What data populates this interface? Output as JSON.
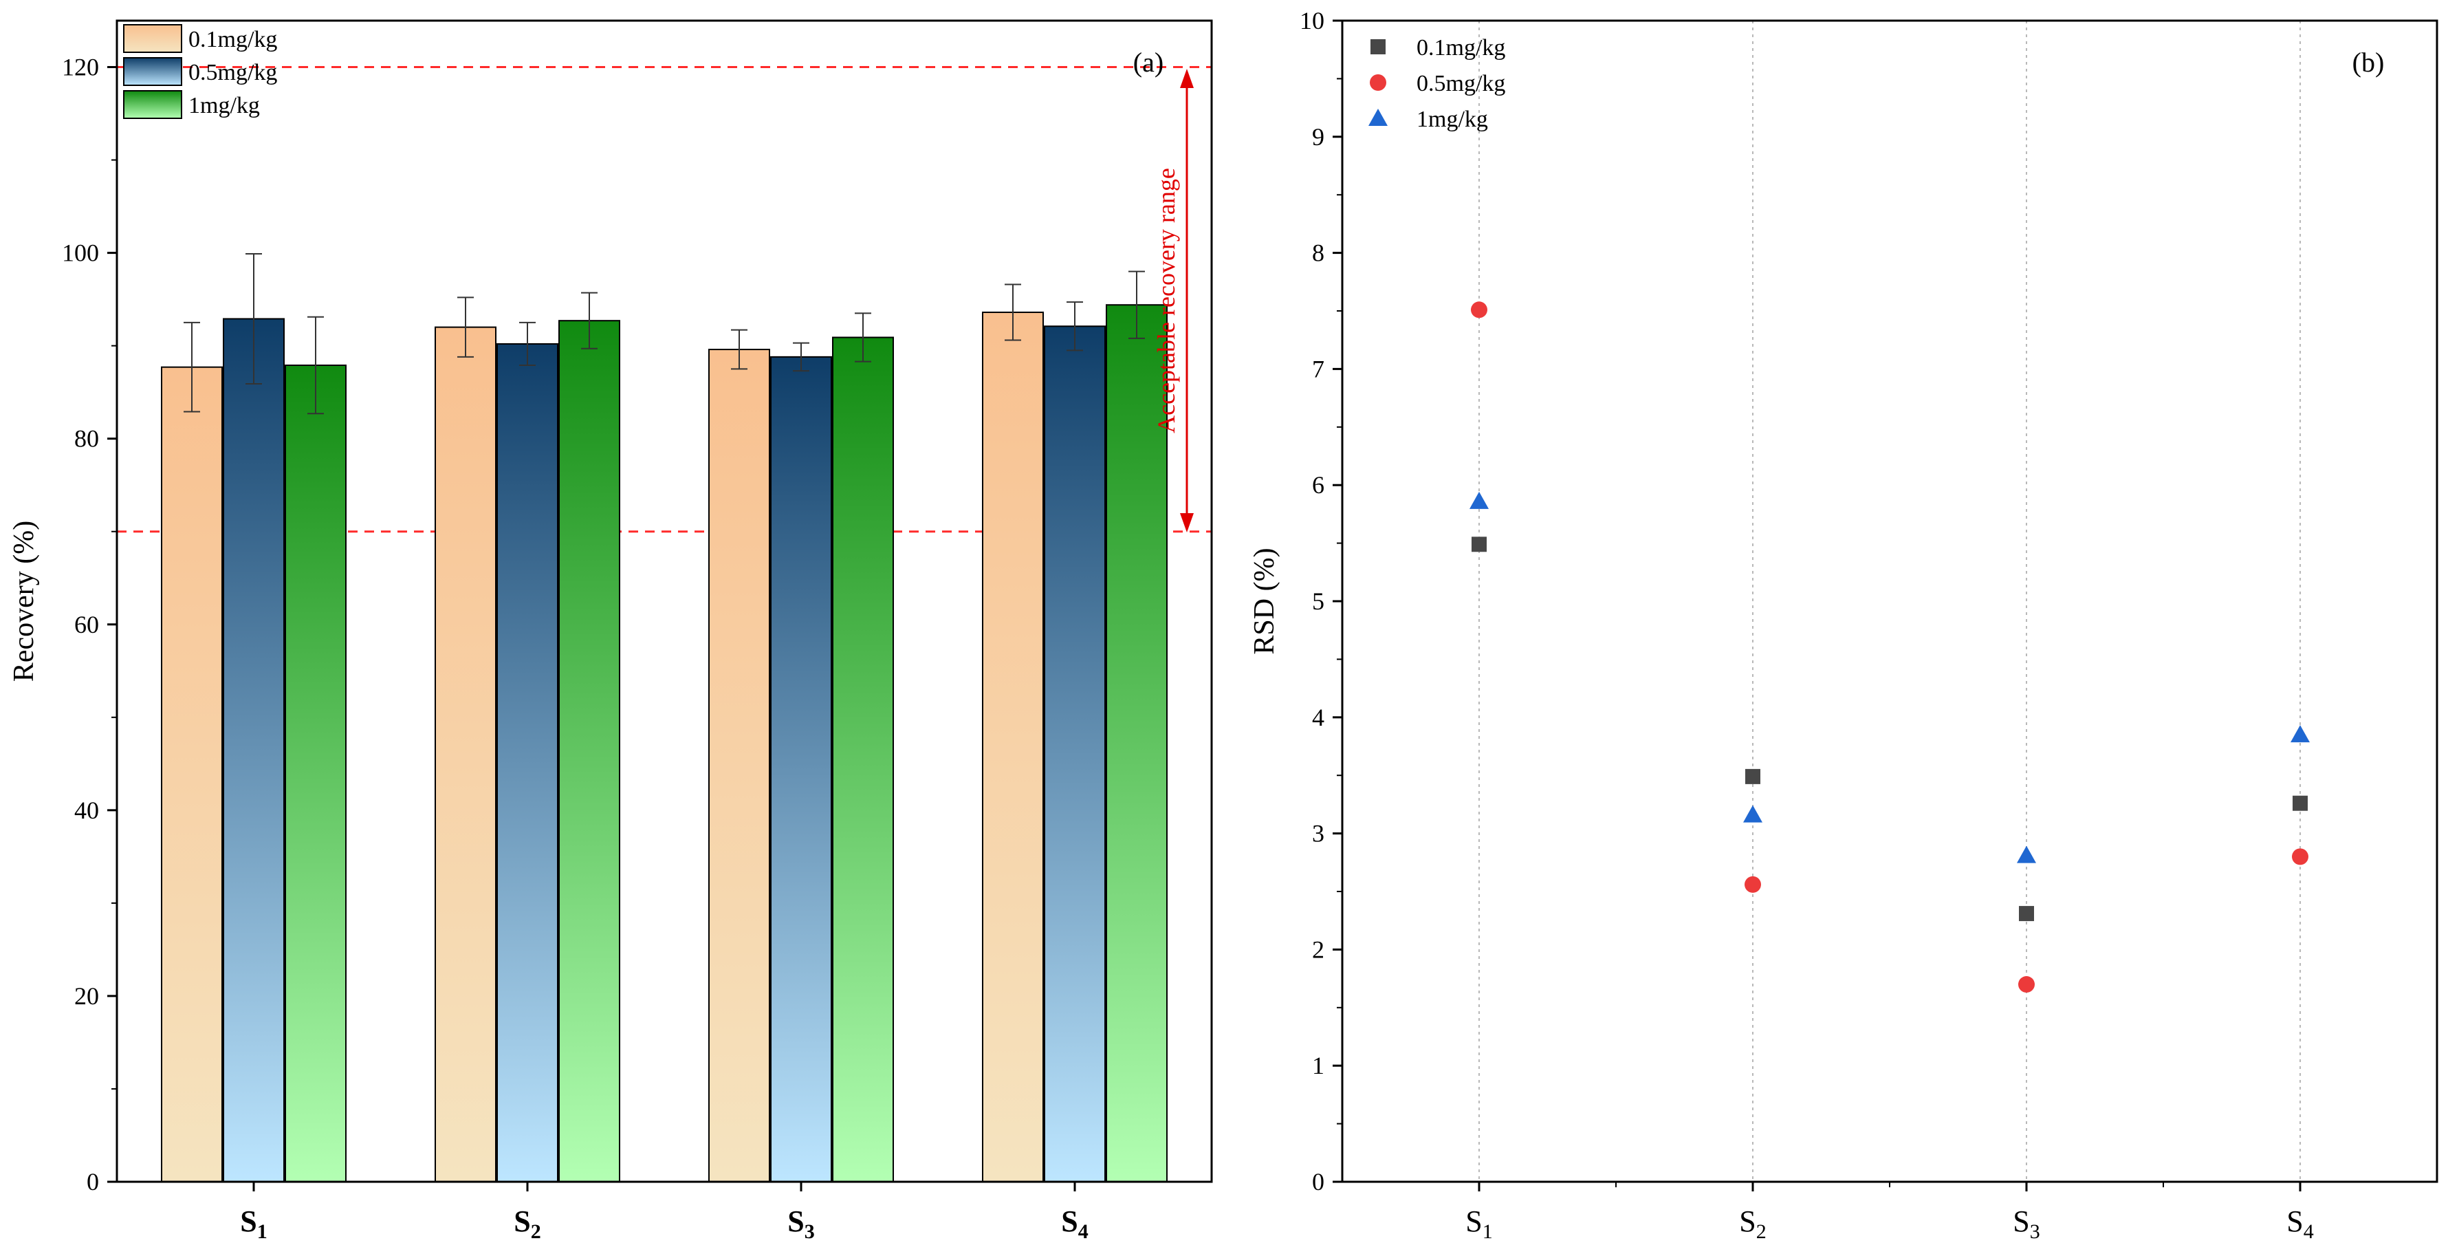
{
  "chart_data": [
    {
      "panel": "(a)",
      "type": "bar",
      "categories": [
        "S",
        "S",
        "S",
        "S"
      ],
      "category_subscripts": [
        "1",
        "2",
        "3",
        "4"
      ],
      "ylabel": "Recovery (%)",
      "ylim": [
        0,
        125
      ],
      "yticks": [
        0,
        20,
        40,
        60,
        80,
        100,
        120
      ],
      "legend_position": "top-left",
      "series": [
        {
          "name": "0.1mg/kg",
          "values": [
            87.7,
            92.0,
            89.6,
            93.6
          ],
          "errors": [
            4.8,
            3.2,
            2.1,
            3.0
          ],
          "color_top": "#f9c08f",
          "color_bottom": "#f5e4c0"
        },
        {
          "name": "0.5mg/kg",
          "values": [
            92.9,
            90.2,
            88.8,
            92.1
          ],
          "errors": [
            7.0,
            2.3,
            1.5,
            2.6
          ],
          "color_top": "#0e3d68",
          "color_bottom": "#bde6ff"
        },
        {
          "name": "1mg/kg",
          "values": [
            87.9,
            92.7,
            90.9,
            94.4
          ],
          "errors": [
            5.2,
            3.0,
            2.6,
            3.6
          ],
          "color_top": "#108a10",
          "color_bottom": "#b3ffb3"
        }
      ],
      "reference_lines": [
        120,
        70
      ],
      "annotation": "Acceptable recovery range"
    },
    {
      "panel": "(b)",
      "type": "scatter",
      "categories": [
        "S",
        "S",
        "S",
        "S"
      ],
      "category_subscripts": [
        "1",
        "2",
        "3",
        "4"
      ],
      "ylabel": "RSD (%)",
      "ylim": [
        0,
        10
      ],
      "yticks": [
        0,
        1,
        2,
        3,
        4,
        5,
        6,
        7,
        8,
        9,
        10
      ],
      "legend_position": "top-left",
      "vertical_grid": true,
      "series": [
        {
          "name": "0.1mg/kg",
          "marker": "square",
          "color": "#474747",
          "values": [
            5.49,
            3.49,
            2.31,
            3.26
          ]
        },
        {
          "name": "0.5mg/kg",
          "marker": "circle",
          "color": "#ec3a3a",
          "values": [
            7.51,
            2.56,
            1.7,
            2.8
          ]
        },
        {
          "name": "1mg/kg",
          "marker": "triangle",
          "color": "#1f67d1",
          "values": [
            5.86,
            3.16,
            2.81,
            3.85
          ]
        }
      ]
    }
  ]
}
